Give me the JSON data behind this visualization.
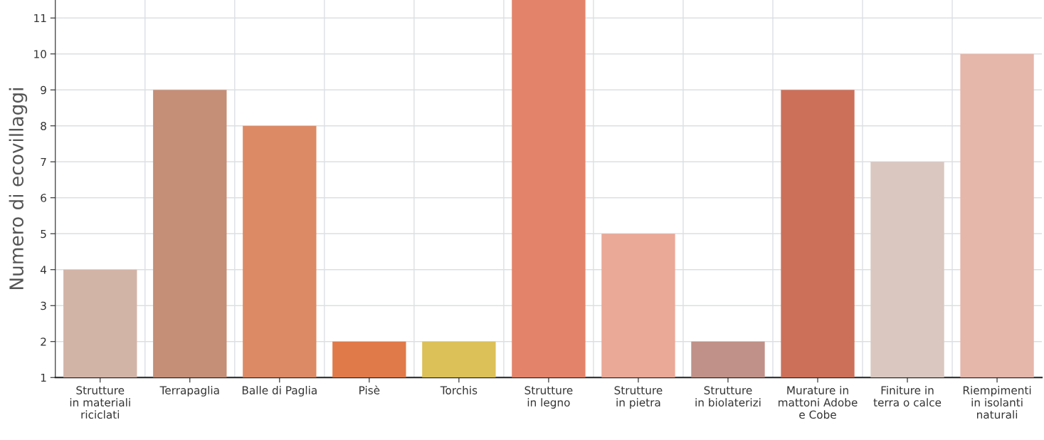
{
  "chart_data": {
    "type": "bar",
    "categories": [
      "Strutture\nin materiali\nriciclati",
      "Terrapaglia",
      "Balle di Paglia",
      "Pisè",
      "Torchis",
      "Strutture\nin legno",
      "Strutture\nin pietra",
      "Strutture\nin biolaterizi",
      "Murature in\nmattoni Adobe\ne Cobe",
      "Finiture in\nterra o calce",
      "Riempimenti\nin isolanti\nnaturali"
    ],
    "values": [
      4,
      9,
      8,
      2,
      2,
      11.5,
      5,
      2,
      9,
      7,
      10
    ],
    "colors": [
      "#d2b4a6",
      "#c48e77",
      "#dc8a65",
      "#e07a48",
      "#dcc058",
      "#e2836a",
      "#eaa896",
      "#bf9188",
      "#cc705a",
      "#d9c7c0",
      "#e5b6aa"
    ],
    "ylabel": "Numero di ecovillaggi",
    "ylim": [
      1,
      11.5
    ],
    "yticks": [
      1,
      2,
      3,
      4,
      5,
      6,
      7,
      8,
      9,
      10,
      11
    ],
    "grid": true
  }
}
